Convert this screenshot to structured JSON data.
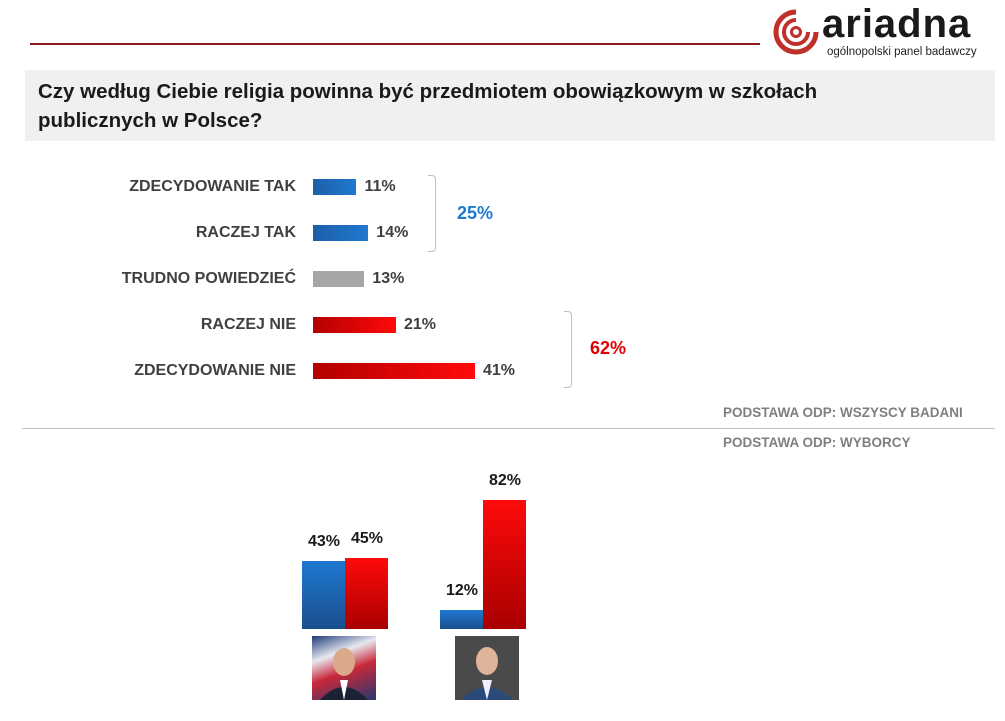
{
  "logo": {
    "word": "ariadna",
    "subtitle": "ogólnopolski panel badawczy",
    "brand_color": "#c0302a"
  },
  "title": "Czy według Ciebie religia powinna  być przedmiotem obowiązkowym  w szkołach publicznych  w Polsce?",
  "chart_data": [
    {
      "type": "bar",
      "orientation": "horizontal",
      "categories": [
        "ZDECYDOWANIE TAK",
        "RACZEJ TAK",
        "TRUDNO POWIEDZIEĆ",
        "RACZEJ NIE",
        "ZDECYDOWANIE NIE"
      ],
      "values": [
        11,
        14,
        13,
        21,
        41
      ],
      "labels": [
        "11%",
        "14%",
        "13%",
        "21%",
        "41%"
      ],
      "colors": [
        "blue",
        "blue",
        "grey",
        "red",
        "red"
      ],
      "groups": [
        {
          "label": "25%",
          "color": "#1f78d1"
        },
        {
          "label": "62%",
          "color": "#e00000"
        }
      ],
      "note": "PODSTAWA ODP: WSZYSCY BADANI"
    },
    {
      "type": "bar",
      "orientation": "vertical",
      "categories": [
        "candidate-1",
        "candidate-2"
      ],
      "series": [
        {
          "color": "#1f78d1",
          "values": [
            43,
            12
          ],
          "labels": [
            "43%",
            "12%"
          ]
        },
        {
          "color": "#ff0a0a",
          "values": [
            45,
            82
          ],
          "labels": [
            "45%",
            "82%"
          ]
        }
      ],
      "note": "PODSTAWA ODP: WYBORCY"
    }
  ]
}
